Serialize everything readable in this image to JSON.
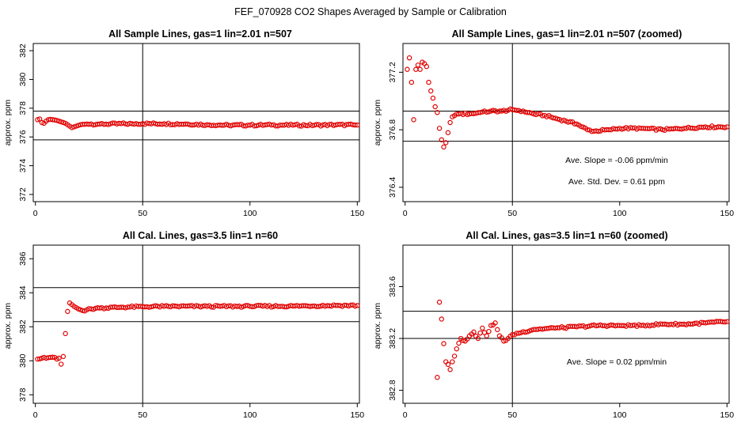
{
  "figure": {
    "title": "FEF_070928  CO2 Shapes Averaged by Sample or Calibration"
  },
  "chart_data": [
    {
      "type": "scatter",
      "title": "All Sample Lines, gas=1 lin=2.01 n=507",
      "ylabel": "approx. ppm",
      "xlim": [
        -1,
        151
      ],
      "ylim": [
        371.5,
        382.5
      ],
      "xticks": [
        "0",
        "50",
        "100",
        "150"
      ],
      "yticks": [
        "372",
        "374",
        "376",
        "378",
        "380",
        "382"
      ],
      "hlines": [
        375.8,
        377.8
      ],
      "vlines": [
        50
      ],
      "annotations": [],
      "segments": [
        [
          1,
          377.2
        ],
        [
          2,
          377.25
        ],
        [
          3,
          377.0
        ],
        [
          4,
          376.95
        ],
        [
          5,
          377.1
        ],
        [
          6,
          377.2
        ],
        [
          7,
          377.22
        ],
        [
          8,
          377.2
        ],
        [
          9,
          377.18
        ],
        [
          10,
          377.15
        ],
        [
          11,
          377.1
        ],
        [
          12,
          377.05
        ],
        [
          13,
          377.0
        ],
        [
          14,
          376.95
        ],
        [
          15,
          376.85
        ],
        [
          16,
          376.75
        ],
        [
          17,
          376.65
        ],
        [
          18,
          376.7
        ],
        [
          19,
          376.75
        ],
        [
          20,
          376.8
        ],
        [
          21,
          376.85
        ],
        [
          22,
          376.88
        ],
        [
          24,
          376.9
        ],
        [
          30,
          376.9
        ],
        [
          45,
          376.92
        ],
        [
          50,
          376.93
        ],
        [
          60,
          376.92
        ],
        [
          70,
          376.9
        ],
        [
          80,
          376.85
        ],
        [
          90,
          376.82
        ],
        [
          100,
          376.82
        ],
        [
          110,
          376.83
        ],
        [
          120,
          376.82
        ],
        [
          130,
          376.82
        ],
        [
          140,
          376.84
        ],
        [
          150,
          376.83
        ]
      ]
    },
    {
      "type": "scatter",
      "title": "All Sample Lines, gas=1 lin=2.01 n=507 (zoomed)",
      "ylabel": "approx. ppm",
      "xlim": [
        -1,
        151
      ],
      "ylim": [
        376.3,
        377.4
      ],
      "xticks": [
        "0",
        "50",
        "100",
        "150"
      ],
      "yticks": [
        "376.4",
        "376.8",
        "377.2"
      ],
      "hlines": [
        376.72,
        376.93
      ],
      "vlines": [
        50
      ],
      "annotations": [
        "Ave. Slope =  -0.06  ppm/min",
        "Ave. Std. Dev. =  0.61  ppm"
      ],
      "segments": [
        [
          1,
          377.22
        ],
        [
          2,
          377.3
        ],
        [
          3,
          377.13
        ],
        [
          4,
          376.87
        ],
        [
          5,
          377.22
        ],
        [
          6,
          377.25
        ],
        [
          7,
          377.22
        ],
        [
          8,
          377.27
        ],
        [
          9,
          377.26
        ],
        [
          10,
          377.24
        ],
        [
          11,
          377.13
        ],
        [
          12,
          377.07
        ],
        [
          13,
          377.02
        ],
        [
          14,
          376.96
        ],
        [
          15,
          376.92
        ],
        [
          16,
          376.81
        ],
        [
          17,
          376.73
        ],
        [
          18,
          376.68
        ],
        [
          19,
          376.71
        ],
        [
          20,
          376.78
        ],
        [
          21,
          376.85
        ],
        [
          22,
          376.89
        ],
        [
          25,
          376.91
        ],
        [
          30,
          376.91
        ],
        [
          35,
          376.92
        ],
        [
          40,
          376.93
        ],
        [
          45,
          376.93
        ],
        [
          50,
          376.94
        ],
        [
          55,
          376.93
        ],
        [
          60,
          376.91
        ],
        [
          65,
          376.9
        ],
        [
          70,
          376.88
        ],
        [
          75,
          376.86
        ],
        [
          80,
          376.84
        ],
        [
          85,
          376.8
        ],
        [
          88,
          376.79
        ],
        [
          95,
          376.8
        ],
        [
          100,
          376.81
        ],
        [
          110,
          376.81
        ],
        [
          120,
          376.8
        ],
        [
          130,
          376.81
        ],
        [
          140,
          376.82
        ],
        [
          150,
          376.82
        ]
      ]
    },
    {
      "type": "scatter",
      "title": "All Cal. Lines, gas=3.5 lin=1 n=60",
      "ylabel": "approx. ppm",
      "xlim": [
        -1,
        151
      ],
      "ylim": [
        377.5,
        386.8
      ],
      "xticks": [
        "0",
        "50",
        "100",
        "150"
      ],
      "yticks": [
        "378",
        "380",
        "382",
        "384",
        "386"
      ],
      "hlines": [
        382.3,
        384.3
      ],
      "vlines": [
        50
      ],
      "annotations": [],
      "segments": [
        [
          1,
          380.1
        ],
        [
          3,
          380.15
        ],
        [
          5,
          380.15
        ],
        [
          7,
          380.2
        ],
        [
          9,
          380.2
        ],
        [
          10,
          380.1
        ],
        [
          11,
          380.15
        ],
        [
          12,
          379.8
        ],
        [
          13,
          380.25
        ],
        [
          14,
          381.6
        ],
        [
          15,
          382.9
        ],
        [
          16,
          383.4
        ],
        [
          17,
          383.3
        ],
        [
          18,
          383.2
        ],
        [
          20,
          383.05
        ],
        [
          22,
          382.95
        ],
        [
          24,
          383.0
        ],
        [
          26,
          383.05
        ],
        [
          30,
          383.1
        ],
        [
          40,
          383.15
        ],
        [
          50,
          383.18
        ],
        [
          60,
          383.2
        ],
        [
          80,
          383.2
        ],
        [
          100,
          383.2
        ],
        [
          120,
          383.22
        ],
        [
          140,
          383.25
        ],
        [
          150,
          383.25
        ]
      ]
    },
    {
      "type": "scatter",
      "title": "All Cal. Lines, gas=3.5 lin=1 n=60 (zoomed)",
      "ylabel": "approx. ppm",
      "xlim": [
        -1,
        151
      ],
      "ylim": [
        382.7,
        383.92
      ],
      "xticks": [
        "0",
        "50",
        "100",
        "150"
      ],
      "yticks": [
        "382.8",
        "383.2",
        "383.6"
      ],
      "hlines": [
        383.2,
        383.41
      ],
      "vlines": [
        50
      ],
      "annotations": [
        "Ave. Slope =  0.02  ppm/min"
      ],
      "segments": [
        [
          15,
          382.9
        ],
        [
          16,
          383.48
        ],
        [
          17,
          383.35
        ],
        [
          18,
          383.16
        ],
        [
          19,
          383.02
        ],
        [
          20,
          383.0
        ],
        [
          21,
          382.96
        ],
        [
          22,
          383.02
        ],
        [
          24,
          383.12
        ],
        [
          26,
          383.2
        ],
        [
          28,
          383.18
        ],
        [
          30,
          383.22
        ],
        [
          32,
          383.25
        ],
        [
          34,
          383.2
        ],
        [
          36,
          383.28
        ],
        [
          38,
          383.22
        ],
        [
          40,
          383.3
        ],
        [
          42,
          383.32
        ],
        [
          44,
          383.22
        ],
        [
          46,
          383.18
        ],
        [
          48,
          383.2
        ],
        [
          50,
          383.23
        ],
        [
          60,
          383.27
        ],
        [
          70,
          383.28
        ],
        [
          80,
          383.29
        ],
        [
          90,
          383.3
        ],
        [
          100,
          383.3
        ],
        [
          110,
          383.3
        ],
        [
          120,
          383.31
        ],
        [
          130,
          383.31
        ],
        [
          140,
          383.32
        ],
        [
          150,
          383.33
        ]
      ]
    }
  ]
}
